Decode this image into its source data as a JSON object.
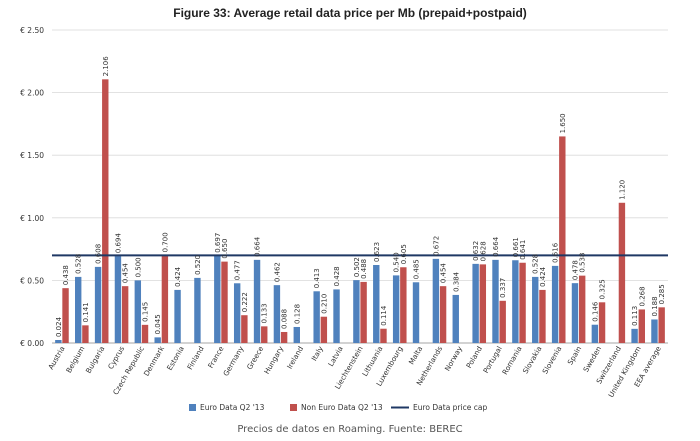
{
  "caption": "Precios de datos en Roaming. Fuente: BEREC",
  "colors": {
    "euro": "#4f81bd",
    "non_euro": "#c0504d",
    "cap": "#1f3864",
    "grid": "#d9d9d9",
    "text": "#333333"
  },
  "chart_data": {
    "type": "bar",
    "title": "Figure 33: Average retail data price per Mb (prepaid+postpaid)",
    "xlabel": "",
    "ylabel": "",
    "ylim": [
      0,
      2.5
    ],
    "yticks": [
      0,
      0.5,
      1.0,
      1.5,
      2.0,
      2.5
    ],
    "ytick_labels": [
      "€ 0.00",
      "€ 0.50",
      "€ 1.00",
      "€ 1.50",
      "€ 2.00",
      "€ 2.50"
    ],
    "grid": true,
    "legend_position": "bottom",
    "categories": [
      "Austria",
      "Belgium",
      "Bulgaria",
      "Cyprus",
      "Czech Republic",
      "Denmark",
      "Estonia",
      "Finland",
      "France",
      "Germany",
      "Greece",
      "Hungary",
      "Ireland",
      "Italy",
      "Latvia",
      "Liechtenstein",
      "Lithuania",
      "Luxembourg",
      "Malta",
      "Netherlands",
      "Norway",
      "Poland",
      "Portugal",
      "Romania",
      "Slovakia",
      "Slovenia",
      "Spain",
      "Sweden",
      "Switzerland",
      "United Kingdom",
      "EEA average"
    ],
    "series": [
      {
        "name": "Euro Data Q2 '13",
        "values": [
          0.024,
          0.528,
          0.608,
          0.694,
          0.5,
          0.045,
          0.424,
          0.52,
          0.697,
          0.477,
          0.664,
          0.462,
          0.128,
          0.413,
          0.428,
          0.502,
          0.623,
          0.54,
          0.485,
          0.672,
          0.384,
          0.632,
          0.664,
          0.661,
          0.528,
          0.616,
          0.478,
          0.146,
          null,
          0.113,
          0.188
        ],
        "labels": [
          "0.024",
          "0.528",
          "0.608",
          "0.694",
          "0.500",
          "0.045",
          "0.424",
          "0.520",
          "0.697",
          "0.477",
          "0.664",
          "0.462",
          "0.128",
          "0.413",
          "0.428",
          "0.502",
          "0.623",
          "0.540",
          "0.485",
          "0.672",
          "0.384",
          "0.632",
          "0.664",
          "0.661",
          "0.528",
          "0.616",
          "0.478",
          "0.146",
          "",
          "0.113",
          "0.188"
        ]
      },
      {
        "name": "Non Euro Data Q2 '13",
        "values": [
          0.438,
          0.141,
          2.106,
          0.454,
          0.145,
          0.7,
          null,
          null,
          0.65,
          0.222,
          0.133,
          0.088,
          null,
          0.21,
          null,
          0.488,
          0.114,
          0.605,
          null,
          0.454,
          null,
          0.628,
          0.337,
          0.641,
          0.424,
          1.65,
          0.538,
          0.325,
          1.12,
          0.268,
          0.285
        ],
        "labels": [
          "0.438",
          "0.141",
          "2.106",
          "0.454",
          "0.145",
          "0.700",
          "",
          "",
          "0.650",
          "0.222",
          "0.133",
          "0.088",
          "",
          "0.210",
          "",
          "0.488",
          "0.114",
          "0.605",
          "",
          "0.454",
          "",
          "0.628",
          "0.337",
          "0.641",
          "0.424",
          "1.650",
          "0.538",
          "0.325",
          "1.120",
          "0.268",
          "0.285"
        ]
      }
    ],
    "reference_line": {
      "name": "Euro Data price cap",
      "value": 0.7
    }
  }
}
